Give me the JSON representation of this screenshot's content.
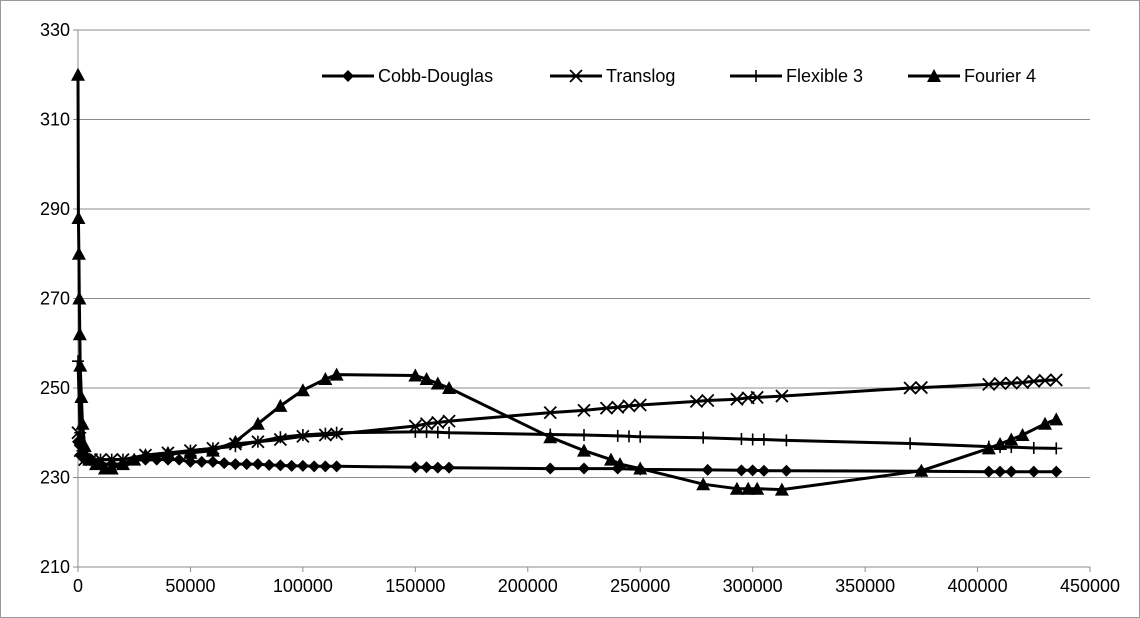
{
  "chart_data": {
    "type": "line",
    "title": "",
    "xlabel": "",
    "ylabel": "",
    "xlim": [
      0,
      450000
    ],
    "ylim": [
      210,
      330
    ],
    "x_ticks": [
      0,
      50000,
      100000,
      150000,
      200000,
      250000,
      300000,
      350000,
      400000,
      450000
    ],
    "y_ticks": [
      210,
      230,
      250,
      270,
      290,
      310,
      330
    ],
    "x_tick_labels": [
      "0",
      "50000",
      "100000",
      "150000",
      "200000",
      "250000",
      "300000",
      "350000",
      "400000",
      "450000"
    ],
    "y_tick_labels": [
      "210",
      "230",
      "250",
      "270",
      "290",
      "310",
      "330"
    ],
    "grid": "horizontal",
    "legend_position": "top",
    "line_color": "#000000",
    "series": [
      {
        "name": "Cobb-Douglas",
        "marker": "diamond",
        "points": [
          [
            0,
            238
          ],
          [
            1000,
            235
          ],
          [
            3000,
            234
          ],
          [
            6000,
            234
          ],
          [
            10000,
            233
          ],
          [
            15000,
            233
          ],
          [
            20000,
            233
          ],
          [
            25000,
            234
          ],
          [
            30000,
            234
          ],
          [
            35000,
            234
          ],
          [
            40000,
            234
          ],
          [
            45000,
            234
          ],
          [
            50000,
            233.5
          ],
          [
            55000,
            233.5
          ],
          [
            60000,
            233.5
          ],
          [
            65000,
            233.2
          ],
          [
            70000,
            233
          ],
          [
            75000,
            233
          ],
          [
            80000,
            233
          ],
          [
            85000,
            232.8
          ],
          [
            90000,
            232.7
          ],
          [
            95000,
            232.6
          ],
          [
            100000,
            232.6
          ],
          [
            105000,
            232.5
          ],
          [
            110000,
            232.5
          ],
          [
            115000,
            232.5
          ],
          [
            150000,
            232.3
          ],
          [
            155000,
            232.3
          ],
          [
            160000,
            232.2
          ],
          [
            165000,
            232.2
          ],
          [
            210000,
            232
          ],
          [
            225000,
            232
          ],
          [
            240000,
            232
          ],
          [
            250000,
            231.8
          ],
          [
            280000,
            231.7
          ],
          [
            295000,
            231.6
          ],
          [
            300000,
            231.6
          ],
          [
            305000,
            231.5
          ],
          [
            315000,
            231.5
          ],
          [
            375000,
            231.4
          ],
          [
            405000,
            231.3
          ],
          [
            410000,
            231.3
          ],
          [
            415000,
            231.3
          ],
          [
            425000,
            231.3
          ],
          [
            435000,
            231.3
          ]
        ]
      },
      {
        "name": "Translog",
        "marker": "x",
        "points": [
          [
            0,
            240
          ],
          [
            1000,
            236
          ],
          [
            3000,
            234
          ],
          [
            6000,
            234
          ],
          [
            10000,
            234
          ],
          [
            15000,
            234
          ],
          [
            20000,
            234
          ],
          [
            30000,
            235
          ],
          [
            40000,
            235.5
          ],
          [
            50000,
            236
          ],
          [
            60000,
            236.5
          ],
          [
            70000,
            237.5
          ],
          [
            80000,
            238
          ],
          [
            90000,
            238.5
          ],
          [
            100000,
            239.2
          ],
          [
            110000,
            239.5
          ],
          [
            115000,
            239.7
          ],
          [
            150000,
            241.5
          ],
          [
            155000,
            242
          ],
          [
            160000,
            242.3
          ],
          [
            165000,
            242.6
          ],
          [
            210000,
            244.5
          ],
          [
            225000,
            245
          ],
          [
            235000,
            245.5
          ],
          [
            240000,
            245.7
          ],
          [
            245000,
            246
          ],
          [
            250000,
            246.2
          ],
          [
            275000,
            247
          ],
          [
            280000,
            247.2
          ],
          [
            293000,
            247.5
          ],
          [
            298000,
            247.8
          ],
          [
            302000,
            247.9
          ],
          [
            313000,
            248.2
          ],
          [
            370000,
            250
          ],
          [
            375000,
            250.1
          ],
          [
            405000,
            250.8
          ],
          [
            410000,
            251
          ],
          [
            415000,
            251.1
          ],
          [
            420000,
            251.2
          ],
          [
            425000,
            251.5
          ],
          [
            430000,
            251.7
          ],
          [
            435000,
            251.8
          ]
        ]
      },
      {
        "name": "Flexible 3",
        "marker": "plus",
        "points": [
          [
            0,
            256
          ],
          [
            1000,
            240
          ],
          [
            2000,
            236
          ],
          [
            5000,
            234
          ],
          [
            10000,
            234
          ],
          [
            15000,
            234
          ],
          [
            20000,
            234
          ],
          [
            30000,
            234.5
          ],
          [
            40000,
            235
          ],
          [
            50000,
            236
          ],
          [
            60000,
            236.5
          ],
          [
            70000,
            237
          ],
          [
            80000,
            238
          ],
          [
            90000,
            239
          ],
          [
            100000,
            239.5
          ],
          [
            110000,
            239.8
          ],
          [
            115000,
            240
          ],
          [
            150000,
            240.2
          ],
          [
            155000,
            240.2
          ],
          [
            160000,
            240.1
          ],
          [
            165000,
            240
          ],
          [
            210000,
            239.6
          ],
          [
            225000,
            239.5
          ],
          [
            240000,
            239.3
          ],
          [
            245000,
            239.2
          ],
          [
            250000,
            239.1
          ],
          [
            278000,
            238.9
          ],
          [
            295000,
            238.6
          ],
          [
            300000,
            238.5
          ],
          [
            305000,
            238.5
          ],
          [
            315000,
            238.3
          ],
          [
            370000,
            237.6
          ],
          [
            405000,
            236.9
          ],
          [
            410000,
            236.8
          ],
          [
            415000,
            236.8
          ],
          [
            425000,
            236.6
          ],
          [
            435000,
            236.5
          ]
        ]
      },
      {
        "name": "Fourier 4",
        "marker": "triangle",
        "points": [
          [
            0,
            320
          ],
          [
            200,
            288
          ],
          [
            400,
            280
          ],
          [
            600,
            270
          ],
          [
            800,
            262
          ],
          [
            1000,
            255
          ],
          [
            1500,
            248
          ],
          [
            2000,
            242
          ],
          [
            3000,
            237
          ],
          [
            5000,
            234
          ],
          [
            8000,
            233
          ],
          [
            12000,
            232
          ],
          [
            15000,
            232
          ],
          [
            20000,
            233
          ],
          [
            25000,
            234
          ],
          [
            30000,
            235
          ],
          [
            40000,
            235.5
          ],
          [
            50000,
            235.5
          ],
          [
            60000,
            236
          ],
          [
            70000,
            238
          ],
          [
            80000,
            242
          ],
          [
            90000,
            246
          ],
          [
            100000,
            249.5
          ],
          [
            110000,
            252
          ],
          [
            115000,
            253
          ],
          [
            150000,
            252.8
          ],
          [
            155000,
            252
          ],
          [
            160000,
            251
          ],
          [
            165000,
            250
          ],
          [
            210000,
            239
          ],
          [
            225000,
            236
          ],
          [
            237000,
            234
          ],
          [
            241000,
            233
          ],
          [
            250000,
            232
          ],
          [
            278000,
            228.5
          ],
          [
            293000,
            227.5
          ],
          [
            298000,
            227.5
          ],
          [
            302000,
            227.5
          ],
          [
            313000,
            227.3
          ],
          [
            375000,
            231.5
          ],
          [
            405000,
            236.5
          ],
          [
            410000,
            237.5
          ],
          [
            415000,
            238.5
          ],
          [
            420000,
            239.5
          ],
          [
            430000,
            242
          ],
          [
            435000,
            243
          ]
        ]
      }
    ]
  }
}
